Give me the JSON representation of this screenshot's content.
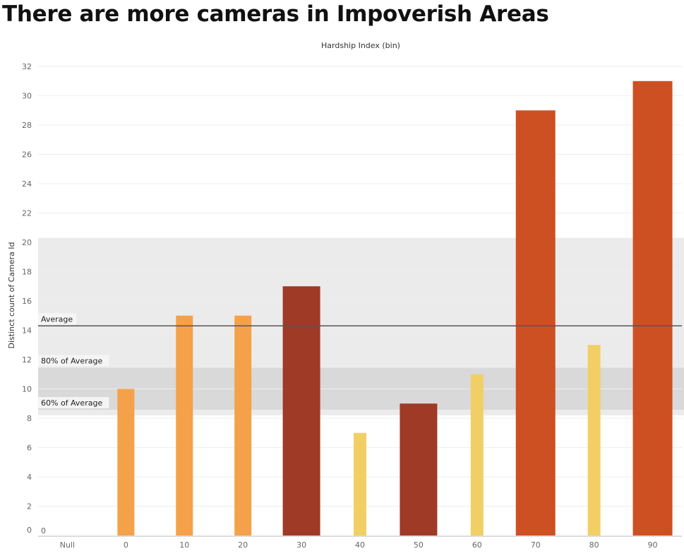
{
  "title": "There are more cameras in Impoverish Areas",
  "chart_data": {
    "type": "bar",
    "xlabel": "Hardship Index (bin)",
    "ylabel": "Distinct count of Camera Id",
    "categories": [
      "Null",
      "0",
      "10",
      "20",
      "30",
      "40",
      "50",
      "60",
      "70",
      "80",
      "90"
    ],
    "values": [
      0,
      10,
      15,
      15,
      17,
      7,
      9,
      11,
      29,
      13,
      31
    ],
    "bar_colors": [
      "#f4a14a",
      "#f4a14a",
      "#f4a14a",
      "#f4a14a",
      "#9e3a26",
      "#f2cf64",
      "#9e3a26",
      "#f2cf64",
      "#cd5022",
      "#f2cf64",
      "#cd5022"
    ],
    "data_labels": [
      "0",
      "",
      "",
      "",
      "",
      "",
      "",
      "",
      "",
      "",
      ""
    ],
    "ylim": [
      0,
      32
    ],
    "yticks": [
      0,
      2,
      4,
      6,
      8,
      10,
      12,
      14,
      16,
      18,
      20,
      22,
      24,
      26,
      28,
      30,
      32
    ],
    "grid": true,
    "reference_lines": [
      {
        "label": "Average",
        "value": 14.3
      },
      {
        "label": "80% of Average",
        "value": 11.44
      },
      {
        "label": "60% of Average",
        "value": 8.58
      }
    ],
    "bands": [
      {
        "from": 8.2,
        "to": 20.3,
        "color": "#ebebeb"
      },
      {
        "from": 8.58,
        "to": 11.44,
        "color": "#d9d9d9"
      }
    ],
    "line_color": "#555555"
  }
}
